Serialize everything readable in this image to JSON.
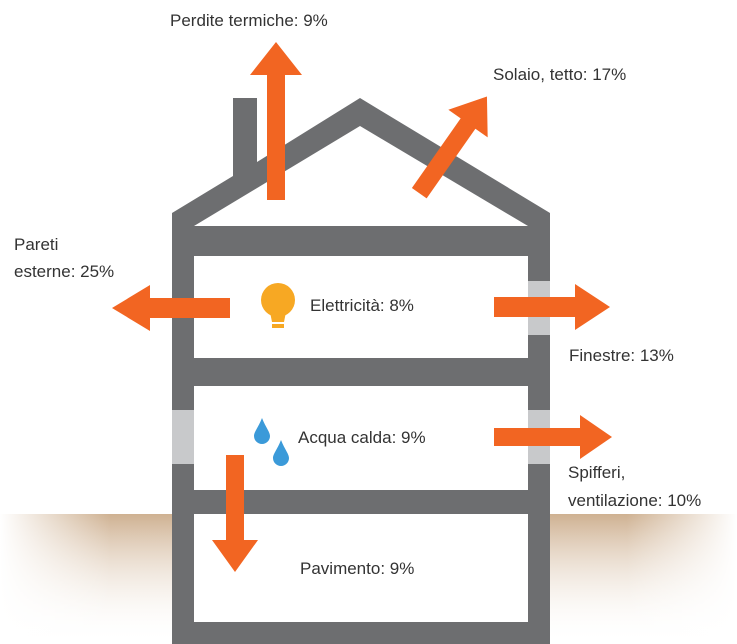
{
  "labels": {
    "chimney": "Perdite termiche: 9%",
    "roof": "Solaio, tetto: 17%",
    "walls": [
      "Pareti",
      "esterne: 25%"
    ],
    "electricity": "Elettricità: 8%",
    "windows": "Finestre: 13%",
    "hot_water": "Acqua calda: 9%",
    "drafts": [
      "Spifferi,",
      "ventilazione: 10%"
    ],
    "floor": "Pavimento: 9%"
  }
}
